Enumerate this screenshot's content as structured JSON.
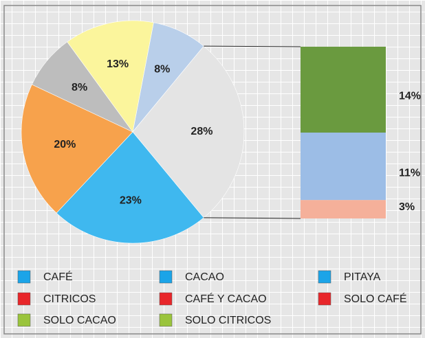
{
  "chart_data": {
    "type": "pie",
    "slices": [
      {
        "value": 8,
        "label": "8%",
        "color": "#b9cfea"
      },
      {
        "value": 28,
        "label": "28%",
        "color": "#e4e4e4"
      },
      {
        "value": 23,
        "label": "23%",
        "color": "#3fb8ef"
      },
      {
        "value": 20,
        "label": "20%",
        "color": "#f7a24c"
      },
      {
        "value": 8,
        "label": "8%",
        "color": "#bdbdbd"
      },
      {
        "value": 13,
        "label": "13%",
        "color": "#fbf59c"
      }
    ],
    "breakdown": [
      {
        "value": 14,
        "label": "14%",
        "color": "#6a9a3f"
      },
      {
        "value": 11,
        "label": "11%",
        "color": "#9cbde6"
      },
      {
        "value": 3,
        "label": "3%",
        "color": "#f5b09a"
      }
    ],
    "legend": [
      {
        "name": "CAFÉ",
        "color": "#1ba4e8"
      },
      {
        "name": "CACAO",
        "color": "#1ba4e8"
      },
      {
        "name": "PITAYA",
        "color": "#1ba4e8"
      },
      {
        "name": "CITRICOS",
        "color": "#e8262a"
      },
      {
        "name": "CAFÉ Y CACAO",
        "color": "#e8262a"
      },
      {
        "name": "SOLO CAFÉ",
        "color": "#e8262a"
      },
      {
        "name": "SOLO CACAO",
        "color": "#9ac43c"
      },
      {
        "name": "SOLO CITRICOS",
        "color": "#9ac43c"
      }
    ]
  }
}
